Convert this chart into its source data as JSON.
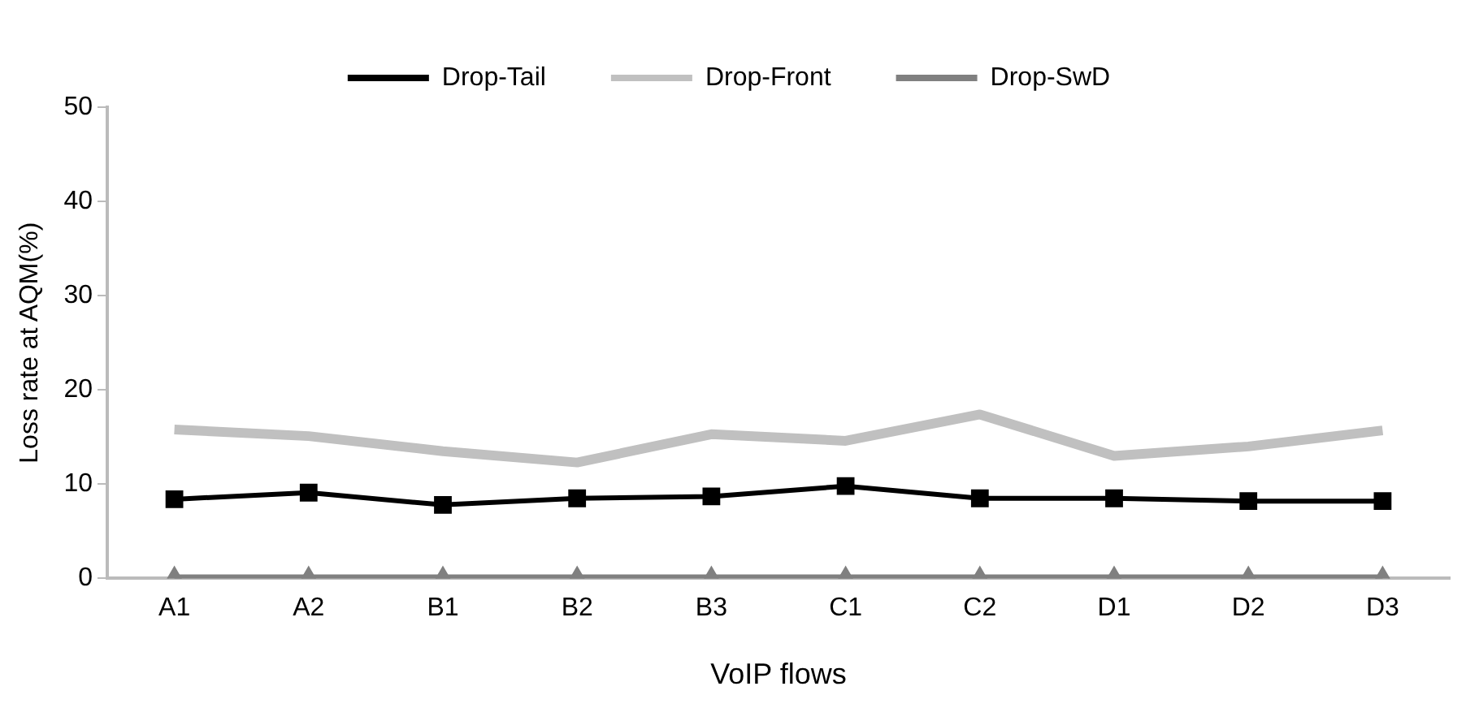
{
  "chart_data": {
    "type": "line",
    "xlabel": "VoIP flows",
    "ylabel": "Loss rate at AQM(%)",
    "categories": [
      "A1",
      "A2",
      "B1",
      "B2",
      "B3",
      "C1",
      "C2",
      "D1",
      "D2",
      "D3"
    ],
    "series": [
      {
        "name": "Drop-Tail",
        "color": "#000000",
        "marker": "square",
        "values": [
          8.4,
          9.1,
          7.8,
          8.5,
          8.7,
          9.8,
          8.5,
          8.5,
          8.2,
          8.2
        ]
      },
      {
        "name": "Drop-Front",
        "color": "#c0c0c0",
        "marker": "none",
        "values": [
          15.8,
          15.1,
          13.5,
          12.3,
          15.3,
          14.6,
          17.4,
          13,
          14,
          15.7
        ]
      },
      {
        "name": "Drop-SwD",
        "color": "#808080",
        "marker": "triangle",
        "values": [
          0,
          0,
          0,
          0,
          0,
          0,
          0,
          0,
          0,
          0
        ]
      }
    ],
    "ylim": [
      0,
      50
    ],
    "yticks": [
      0,
      10,
      20,
      30,
      40,
      50
    ],
    "grid": false,
    "legend": "top"
  }
}
